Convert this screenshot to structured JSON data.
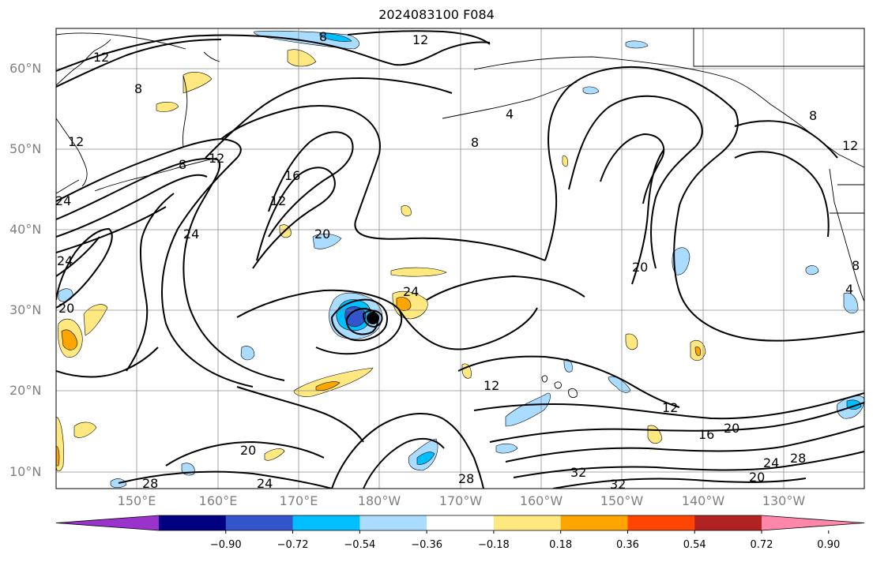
{
  "title": "2024083100 F084",
  "map": {
    "lat_labels": [
      "60°N",
      "50°N",
      "40°N",
      "30°N",
      "20°N",
      "10°N"
    ],
    "lon_labels": [
      "150°E",
      "160°E",
      "170°E",
      "180°W",
      "170°W",
      "160°W",
      "150°W",
      "140°W",
      "130°W"
    ],
    "lat_range": [
      8,
      65
    ],
    "lon_range": [
      140,
      240
    ],
    "grid": true,
    "contour_labels": [
      "8",
      "12",
      "12",
      "8",
      "12",
      "8",
      "12",
      "16",
      "12",
      "24",
      "24",
      "20",
      "20",
      "24",
      "20",
      "8",
      "4",
      "8",
      "12",
      "12",
      "20",
      "24",
      "28",
      "24",
      "28",
      "32",
      "32",
      "16",
      "20",
      "20",
      "24",
      "28",
      "12",
      "8",
      "4"
    ],
    "storm_center": {
      "lat": 29,
      "lon": 180.5
    }
  },
  "colorbar": {
    "ticks": [
      "−0.90",
      "−0.72",
      "−0.54",
      "−0.36",
      "−0.18",
      "0.18",
      "0.36",
      "0.54",
      "0.72",
      "0.90"
    ],
    "colors": [
      "#9933cc",
      "#000080",
      "#3355cc",
      "#00bfff",
      "#aadcff",
      "#ffffff",
      "#ffe880",
      "#ffa500",
      "#ff4500",
      "#b22222",
      "#ff88aa"
    ]
  },
  "colors": {
    "contour": "#000000",
    "coast": "#000000",
    "grid": "#808080"
  }
}
